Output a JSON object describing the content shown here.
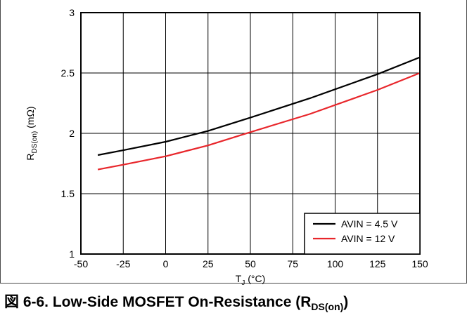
{
  "caption": {
    "prefix": "図 6-6. Low-Side MOSFET On-Resistance (R",
    "sub": "DS(on)",
    "suffix": ")"
  },
  "chart_data": {
    "type": "line",
    "title": "図 6-6. Low-Side MOSFET On-Resistance (RDS(on))",
    "xlabel": {
      "main": "T",
      "sub": "J",
      "unit": " (°C)"
    },
    "ylabel": {
      "main": "R",
      "sub": "DS(on)",
      "unit": " (mΩ)"
    },
    "xlim": [
      -50,
      150
    ],
    "ylim": [
      1,
      3
    ],
    "x_ticks": [
      -50,
      -25,
      0,
      25,
      50,
      75,
      100,
      125,
      150
    ],
    "y_ticks": [
      1,
      1.5,
      2,
      2.5,
      3
    ],
    "x_tick_labels": [
      "-50",
      "-25",
      "0",
      "25",
      "50",
      "75",
      "100",
      "125",
      "150"
    ],
    "y_tick_labels": [
      "1",
      "1.5",
      "2",
      "2.5",
      "3"
    ],
    "grid": true,
    "legend_position": "bottom-right",
    "series": [
      {
        "name": "AVIN = 4.5 V",
        "color": "#000000",
        "x": [
          -40,
          -25,
          0,
          25,
          50,
          85,
          125,
          150
        ],
        "y": [
          1.82,
          1.86,
          1.93,
          2.02,
          2.13,
          2.29,
          2.49,
          2.63
        ]
      },
      {
        "name": "AVIN = 12 V",
        "color": "#e8262b",
        "x": [
          -40,
          -25,
          0,
          25,
          50,
          85,
          125,
          150
        ],
        "y": [
          1.7,
          1.74,
          1.81,
          1.9,
          2.01,
          2.16,
          2.36,
          2.5
        ]
      }
    ]
  }
}
